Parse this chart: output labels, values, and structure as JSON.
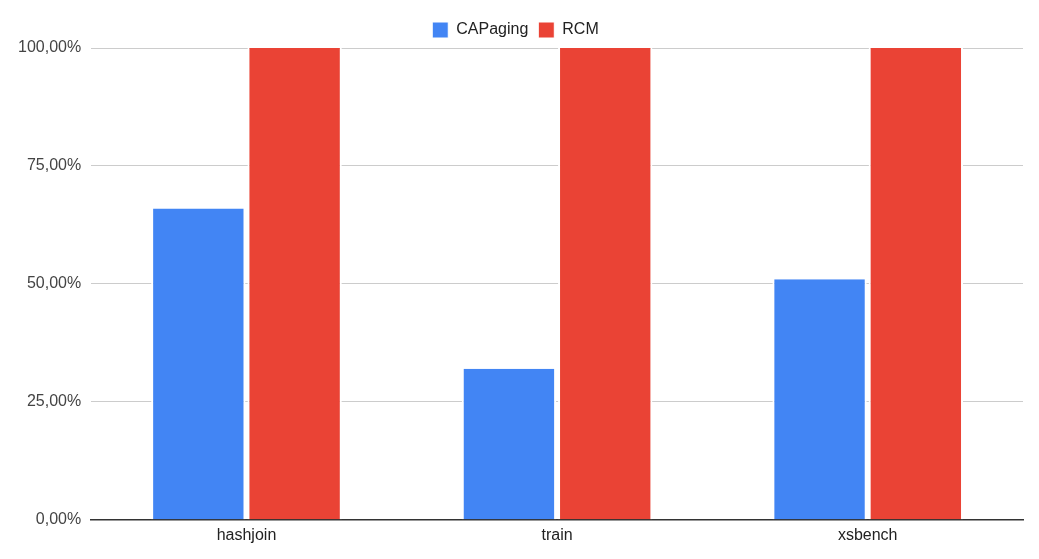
{
  "chart_data": {
    "type": "bar",
    "categories": [
      "hashjoin",
      "train",
      "xsbench"
    ],
    "series": [
      {
        "name": "CAPaging",
        "color": "#4285f4",
        "values": [
          66,
          32,
          51
        ]
      },
      {
        "name": "RCM",
        "color": "#ea4335",
        "values": [
          100,
          100,
          100
        ]
      }
    ],
    "ylim": [
      0,
      100
    ],
    "yticks": [
      {
        "value": 0,
        "label": "0,00%"
      },
      {
        "value": 25,
        "label": "25,00%"
      },
      {
        "value": 50,
        "label": "50,00%"
      },
      {
        "value": 75,
        "label": "75,00%"
      },
      {
        "value": 100,
        "label": "100,00%"
      }
    ],
    "grid": "y",
    "legend": "top"
  }
}
